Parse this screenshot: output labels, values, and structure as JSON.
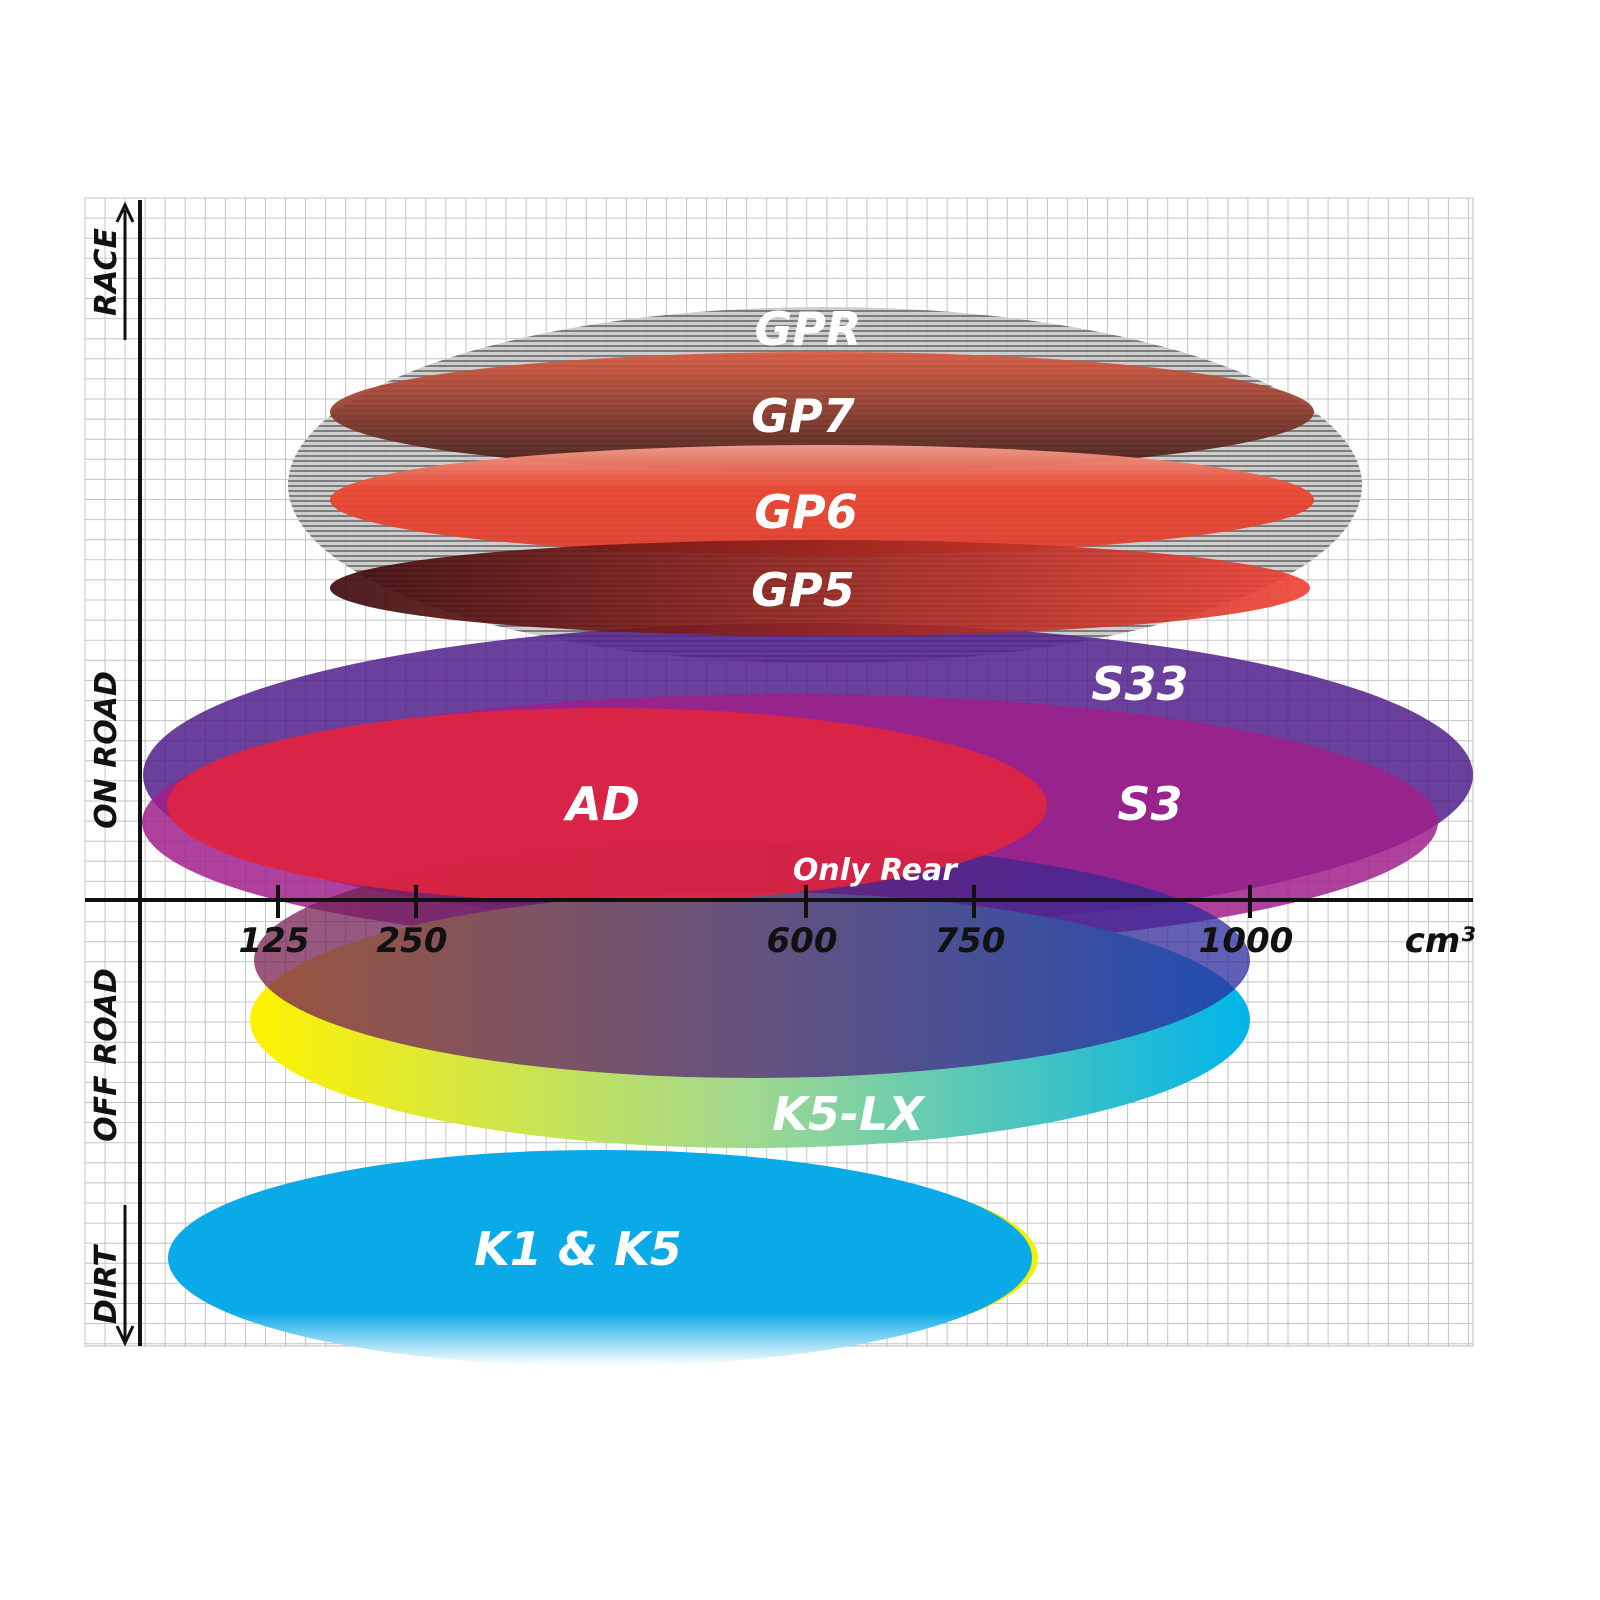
{
  "chart_data": {
    "type": "ellipse-positioning",
    "xlabel": "cm³",
    "x_ticks": [
      "125",
      "250",
      "600",
      "750",
      "1000"
    ],
    "y_zones": [
      "RACE",
      "ON ROAD",
      "OFF ROAD",
      "DIRT"
    ],
    "grid": true,
    "series": [
      {
        "name": "GPR",
        "color": "#9a9a9a"
      },
      {
        "name": "GP7",
        "color": "#8b3a2a"
      },
      {
        "name": "GP6",
        "color": "#e8452f"
      },
      {
        "name": "GP5",
        "color": "#b0241c"
      },
      {
        "name": "S33",
        "color": "#5a2a8e"
      },
      {
        "name": "S3",
        "color": "#a0208a"
      },
      {
        "name": "AD",
        "color": "#e0233f"
      },
      {
        "name": "Only Rear",
        "color": "#6a2a70"
      },
      {
        "name": "K5-LX",
        "color": "#1ab8d8"
      },
      {
        "name": "K1 & K5",
        "color": "#0aaae8"
      }
    ]
  }
}
